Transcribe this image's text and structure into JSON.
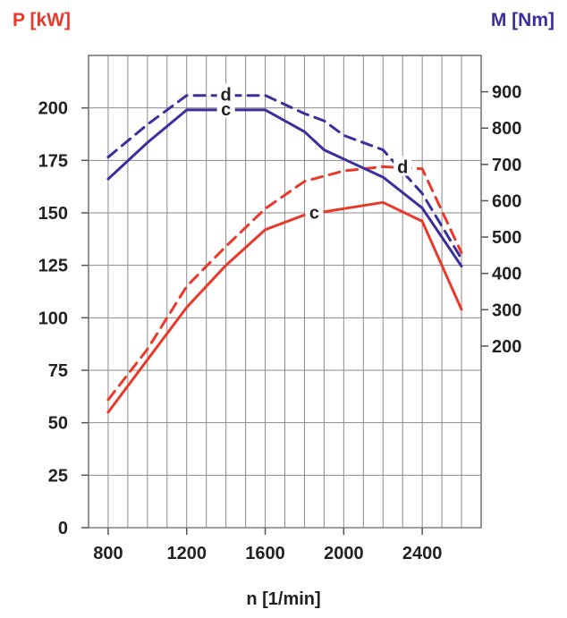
{
  "chart_data": {
    "type": "line",
    "y_left_label": "P [kW]",
    "y_right_label": "M [Nm]",
    "xlabel": "n [1/min]",
    "x_ticks": [
      800,
      1200,
      1600,
      2000,
      2400
    ],
    "xlim": [
      700,
      2700
    ],
    "y_left_ticks": [
      0,
      25,
      50,
      75,
      100,
      125,
      150,
      175,
      200
    ],
    "y_left_lim": [
      0,
      225
    ],
    "y_right_ticks": [
      200,
      300,
      400,
      500,
      600,
      700,
      800,
      900
    ],
    "y_right_lim": [
      -300,
      1000
    ],
    "grid": true,
    "colors": {
      "power": "#e8392a",
      "torque": "#3b2f9e"
    },
    "series": [
      {
        "name": "c",
        "quantity": "P",
        "axis": "left",
        "style": "solid",
        "color": "#e8392a",
        "points": [
          [
            800,
            55
          ],
          [
            1000,
            80
          ],
          [
            1200,
            105
          ],
          [
            1400,
            125
          ],
          [
            1600,
            142
          ],
          [
            1800,
            149
          ],
          [
            2000,
            152
          ],
          [
            2200,
            155
          ],
          [
            2400,
            146
          ],
          [
            2600,
            104
          ]
        ]
      },
      {
        "name": "d",
        "quantity": "P",
        "axis": "left",
        "style": "dashed",
        "color": "#e8392a",
        "points": [
          [
            800,
            61
          ],
          [
            1000,
            85
          ],
          [
            1200,
            115
          ],
          [
            1400,
            134
          ],
          [
            1600,
            152
          ],
          [
            1800,
            165
          ],
          [
            2000,
            170
          ],
          [
            2200,
            172
          ],
          [
            2400,
            171
          ],
          [
            2600,
            131
          ]
        ]
      },
      {
        "name": "c",
        "quantity": "M",
        "axis": "right",
        "style": "solid",
        "color": "#3b2f9e",
        "points": [
          [
            800,
            660
          ],
          [
            1000,
            760
          ],
          [
            1200,
            850
          ],
          [
            1400,
            850
          ],
          [
            1600,
            850
          ],
          [
            1800,
            790
          ],
          [
            1900,
            740
          ],
          [
            2000,
            715
          ],
          [
            2200,
            665
          ],
          [
            2400,
            580
          ],
          [
            2600,
            420
          ]
        ]
      },
      {
        "name": "d",
        "quantity": "M",
        "axis": "right",
        "style": "dashed",
        "color": "#3b2f9e",
        "points": [
          [
            800,
            720
          ],
          [
            1000,
            810
          ],
          [
            1200,
            890
          ],
          [
            1400,
            890
          ],
          [
            1600,
            890
          ],
          [
            1800,
            840
          ],
          [
            1900,
            820
          ],
          [
            2000,
            780
          ],
          [
            2200,
            740
          ],
          [
            2400,
            620
          ],
          [
            2600,
            440
          ]
        ]
      }
    ]
  }
}
